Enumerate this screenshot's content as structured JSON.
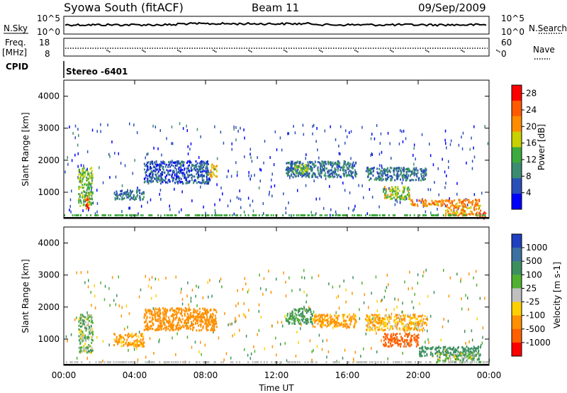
{
  "header": {
    "station": "Syowa South (fitACF)",
    "beam": "Beam 11",
    "date": "09/Sep/2009"
  },
  "noise_panel": {
    "left_label": "N.Sky",
    "right_label": "N.Search",
    "left_ticks": [
      "10^5",
      "10^0"
    ],
    "right_ticks": [
      "10^5",
      "10^0"
    ]
  },
  "freq_panel": {
    "left_label_line1": "Freq.",
    "left_label_line2": "[MHz]",
    "right_label": "Nave",
    "left_ticks": [
      "18",
      "8"
    ],
    "right_ticks": [
      "60",
      "0"
    ],
    "cpid_label": "CPID",
    "cpid_value": "Stereo -6401"
  },
  "colors": {
    "power_scale": [
      "#0000ff",
      "#2b4fb8",
      "#3c8c72",
      "#3daa3d",
      "#c8d000",
      "#ff8c00",
      "#ff5a00",
      "#ff0000"
    ],
    "velocity_scale": [
      "#2040c0",
      "#3c70a0",
      "#3c9060",
      "#50b030",
      "#c0c0c0",
      "#ffd000",
      "#ff9000",
      "#ff6000",
      "#ff0000"
    ]
  },
  "chart_data": [
    {
      "type": "heatmap",
      "title": "",
      "ylabel": "Slant Range [km]",
      "xlabel": "",
      "x_ticks": [
        "00:00",
        "04:00",
        "08:00",
        "12:00",
        "16:00",
        "20:00",
        "00:00"
      ],
      "y_ticks": [
        1000,
        2000,
        3000,
        4000
      ],
      "ylim": [
        180,
        4500
      ],
      "xlim_hours": [
        0,
        24
      ],
      "colorbar": {
        "label": "Power [dB]",
        "ticks": [
          4,
          8,
          12,
          16,
          20,
          24,
          28
        ],
        "range": [
          0,
          30
        ]
      },
      "regions": [
        {
          "t_start": 0.8,
          "t_end": 1.6,
          "range_min": 600,
          "range_max": 1800,
          "value": 14
        },
        {
          "t_start": 1.2,
          "t_end": 1.4,
          "range_min": 400,
          "range_max": 900,
          "value": 24
        },
        {
          "t_start": 2.8,
          "t_end": 4.5,
          "range_min": 800,
          "range_max": 1100,
          "value": 8
        },
        {
          "t_start": 4.5,
          "t_end": 8.2,
          "range_min": 1300,
          "range_max": 2000,
          "value": 6
        },
        {
          "t_start": 8.2,
          "t_end": 8.6,
          "range_min": 1500,
          "range_max": 1900,
          "value": 18
        },
        {
          "t_start": 12.5,
          "t_end": 16.5,
          "range_min": 1500,
          "range_max": 2000,
          "value": 8
        },
        {
          "t_start": 13.0,
          "t_end": 13.8,
          "range_min": 1600,
          "range_max": 1900,
          "value": 14
        },
        {
          "t_start": 17.0,
          "t_end": 20.5,
          "range_min": 1400,
          "range_max": 1800,
          "value": 8
        },
        {
          "t_start": 18.0,
          "t_end": 19.5,
          "range_min": 800,
          "range_max": 1200,
          "value": 16
        },
        {
          "t_start": 19.5,
          "t_end": 23.5,
          "range_min": 600,
          "range_max": 800,
          "value": 22
        },
        {
          "t_start": 21.5,
          "t_end": 23.5,
          "range_min": 300,
          "range_max": 600,
          "value": 20
        },
        {
          "t_start": 23.2,
          "t_end": 23.8,
          "range_min": 200,
          "range_max": 400,
          "value": 28
        }
      ]
    },
    {
      "type": "heatmap",
      "title": "",
      "ylabel": "Slant Range [km]",
      "xlabel": "Time UT",
      "x_ticks": [
        "00:00",
        "04:00",
        "08:00",
        "12:00",
        "16:00",
        "20:00",
        "00:00"
      ],
      "y_ticks": [
        1000,
        2000,
        3000,
        4000
      ],
      "ylim": [
        180,
        4500
      ],
      "xlim_hours": [
        0,
        24
      ],
      "colorbar": {
        "label": "Velocity [m s-1]",
        "ticks": [
          1000,
          500,
          100,
          25,
          -25,
          -100,
          -500,
          -1000
        ],
        "range": [
          -1000,
          1000
        ]
      },
      "regions": [
        {
          "t_start": 0.8,
          "t_end": 1.6,
          "range_min": 600,
          "range_max": 1800,
          "value": 50
        },
        {
          "t_start": 2.8,
          "t_end": 4.5,
          "range_min": 800,
          "range_max": 1200,
          "value": -150
        },
        {
          "t_start": 4.5,
          "t_end": 8.6,
          "range_min": 1300,
          "range_max": 2000,
          "value": -200
        },
        {
          "t_start": 12.5,
          "t_end": 14.0,
          "range_min": 1500,
          "range_max": 2000,
          "value": 100
        },
        {
          "t_start": 14.0,
          "t_end": 16.5,
          "range_min": 1400,
          "range_max": 1800,
          "value": -150
        },
        {
          "t_start": 17.0,
          "t_end": 20.5,
          "range_min": 1300,
          "range_max": 1800,
          "value": -100
        },
        {
          "t_start": 18.0,
          "t_end": 20.0,
          "range_min": 800,
          "range_max": 1200,
          "value": -600
        },
        {
          "t_start": 20.0,
          "t_end": 23.5,
          "range_min": 500,
          "range_max": 800,
          "value": 200
        },
        {
          "t_start": 21.0,
          "t_end": 23.5,
          "range_min": 300,
          "range_max": 600,
          "value": 60
        }
      ]
    }
  ]
}
